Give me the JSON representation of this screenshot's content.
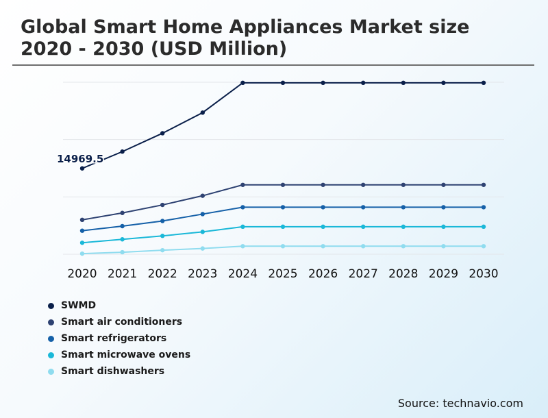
{
  "title": "Global Smart Home Appliances Market size 2020 - 2030 (USD Million)",
  "source": "Source: technavio.com",
  "chart_data": {
    "type": "line",
    "title": "Global Smart Home Appliances Market size 2020 - 2030 (USD Million)",
    "xlabel": "",
    "ylabel": "",
    "categories": [
      "2020",
      "2021",
      "2022",
      "2023",
      "2024",
      "2025",
      "2026",
      "2027",
      "2028",
      "2029",
      "2030"
    ],
    "ylim": [
      0,
      30000
    ],
    "grid": true,
    "legend_position": "bottom-left",
    "annotations": [
      {
        "series": "SWMD",
        "category": "2020",
        "label": "14969.5"
      }
    ],
    "series": [
      {
        "name": "SWMD",
        "color": "#0a1f4a",
        "values": [
          14969.5,
          17900,
          21100,
          24700,
          29900,
          29900,
          29900,
          29900,
          29900,
          29900,
          29900
        ]
      },
      {
        "name": "Smart air conditioners",
        "color": "#2e4272",
        "values": [
          6000,
          7200,
          8600,
          10200,
          12100,
          12100,
          12100,
          12100,
          12100,
          12100,
          12100
        ]
      },
      {
        "name": "Smart refrigerators",
        "color": "#1560a8",
        "values": [
          4100,
          4900,
          5800,
          7000,
          8200,
          8200,
          8200,
          8200,
          8200,
          8200,
          8200
        ]
      },
      {
        "name": "Smart microwave ovens",
        "color": "#1ab8d8",
        "values": [
          2000,
          2600,
          3200,
          3900,
          4800,
          4800,
          4800,
          4800,
          4800,
          4800,
          4800
        ]
      },
      {
        "name": "Smart dishwashers",
        "color": "#8fdcef",
        "values": [
          100,
          350,
          700,
          1000,
          1400,
          1400,
          1400,
          1400,
          1400,
          1400,
          1400
        ]
      }
    ]
  }
}
